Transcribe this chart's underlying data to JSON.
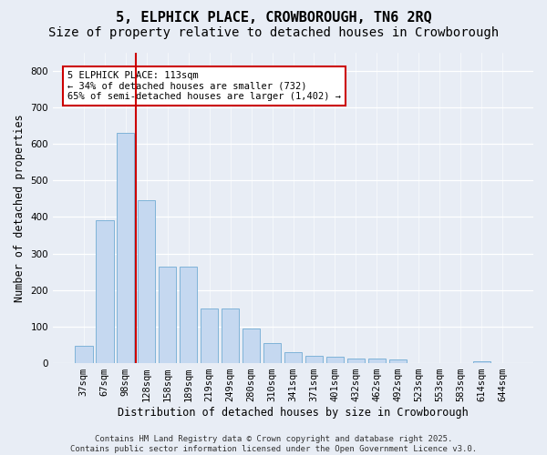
{
  "title": "5, ELPHICK PLACE, CROWBOROUGH, TN6 2RQ",
  "subtitle": "Size of property relative to detached houses in Crowborough",
  "xlabel": "Distribution of detached houses by size in Crowborough",
  "ylabel": "Number of detached properties",
  "categories": [
    "37sqm",
    "67sqm",
    "98sqm",
    "128sqm",
    "158sqm",
    "189sqm",
    "219sqm",
    "249sqm",
    "280sqm",
    "310sqm",
    "341sqm",
    "371sqm",
    "401sqm",
    "432sqm",
    "462sqm",
    "492sqm",
    "523sqm",
    "553sqm",
    "583sqm",
    "614sqm",
    "644sqm"
  ],
  "values": [
    47,
    390,
    630,
    445,
    265,
    265,
    150,
    150,
    95,
    55,
    30,
    20,
    18,
    12,
    12,
    10,
    0,
    0,
    0,
    5,
    0
  ],
  "bar_color": "#c5d8f0",
  "bar_edge_color": "#7fb3d8",
  "vline_color": "#cc0000",
  "vline_x": 2.5,
  "annotation_text": "5 ELPHICK PLACE: 113sqm\n← 34% of detached houses are smaller (732)\n65% of semi-detached houses are larger (1,402) →",
  "annotation_box_color": "#ffffff",
  "annotation_box_edge": "#cc0000",
  "bg_color": "#e8edf5",
  "ylim": [
    0,
    850
  ],
  "yticks": [
    0,
    100,
    200,
    300,
    400,
    500,
    600,
    700,
    800
  ],
  "footer": "Contains HM Land Registry data © Crown copyright and database right 2025.\nContains public sector information licensed under the Open Government Licence v3.0.",
  "title_fontsize": 11,
  "subtitle_fontsize": 10,
  "xlabel_fontsize": 8.5,
  "ylabel_fontsize": 8.5,
  "tick_fontsize": 7.5,
  "footer_fontsize": 6.5
}
